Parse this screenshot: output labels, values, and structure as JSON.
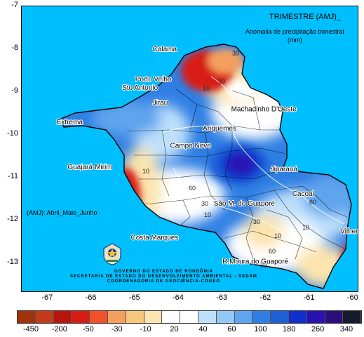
{
  "title": "TRIMESTRE (AMJ)_",
  "subtitle": "Anomalia de precipitação trimestral",
  "units": "(mm)",
  "period_note": "(AMJ):  Abril_Maio_Junho",
  "government": [
    "GOVERNO DO ESTADO DE RONDÔNIA",
    "SECRETARIA DE ESTADO DO DESENVOLVIMENTO AMBIENTAL - SEDAM",
    "COORDENADORIA DE GEOCIÊNCIA-COGEO"
  ],
  "axes": {
    "y_ticks": [
      "-7",
      "-8",
      "-9",
      "-10",
      "-11",
      "-12",
      "-13"
    ],
    "x_ticks": [
      "-67",
      "-66",
      "-65",
      "-64",
      "-63",
      "-62",
      "-61",
      "-60"
    ],
    "lon_range": [
      -67.6,
      -59.9
    ],
    "lat_range": [
      -13.65,
      -7.0
    ]
  },
  "cities": [
    {
      "name": "Calama",
      "lon": -64.6,
      "lat": -8.05
    },
    {
      "name": "Porto Velho",
      "lon": -65.0,
      "lat": -8.75
    },
    {
      "name": "Sto Antonio",
      "lon": -65.3,
      "lat": -8.95
    },
    {
      "name": "Jirau",
      "lon": -64.6,
      "lat": -9.3
    },
    {
      "name": "Machadinho D'Oeste",
      "lon": -62.8,
      "lat": -9.45
    },
    {
      "name": "Extrema",
      "lon": -66.8,
      "lat": -9.75
    },
    {
      "name": "Ariquemes",
      "lon": -63.45,
      "lat": -9.9
    },
    {
      "name": "Campo Novo",
      "lon": -64.2,
      "lat": -10.3
    },
    {
      "name": "Guajará-Mirim",
      "lon": -66.55,
      "lat": -10.8
    },
    {
      "name": "Jiparaná",
      "lon": -61.9,
      "lat": -10.85
    },
    {
      "name": "Cacoal",
      "lon": -61.4,
      "lat": -11.42
    },
    {
      "name": "São M. do Guaporé",
      "lon": -63.2,
      "lat": -11.65
    },
    {
      "name": "Vilhena",
      "lon": -60.3,
      "lat": -12.3
    },
    {
      "name": "Costa Marques",
      "lon": -65.1,
      "lat": -12.45
    },
    {
      "name": "R.Moura do Guaporé",
      "lon": -63.0,
      "lat": -13.0
    }
  ],
  "contour_labels": [
    "30",
    "10",
    "10",
    "10",
    "60",
    "30",
    "10",
    "30",
    "10",
    "60",
    "80",
    "10",
    "30"
  ],
  "legend": {
    "colors": [
      "#a0330a",
      "#c23a1a",
      "#b8140e",
      "#d81c14",
      "#f2502a",
      "#f49f5e",
      "#f7c77c",
      "#fbe4ad",
      "#ffffff",
      "#ffffff",
      "#bde0fb",
      "#93c7f6",
      "#5fa4ee",
      "#2f7fe3",
      "#1c5fd6",
      "#0f2fcd",
      "#2a12b2",
      "#2a0f7a",
      "#161a2e"
    ],
    "labels": [
      "-450",
      "-200",
      "-50",
      "-30",
      "-10",
      "20",
      "40",
      "60",
      "100",
      "180",
      "260",
      "340"
    ]
  }
}
